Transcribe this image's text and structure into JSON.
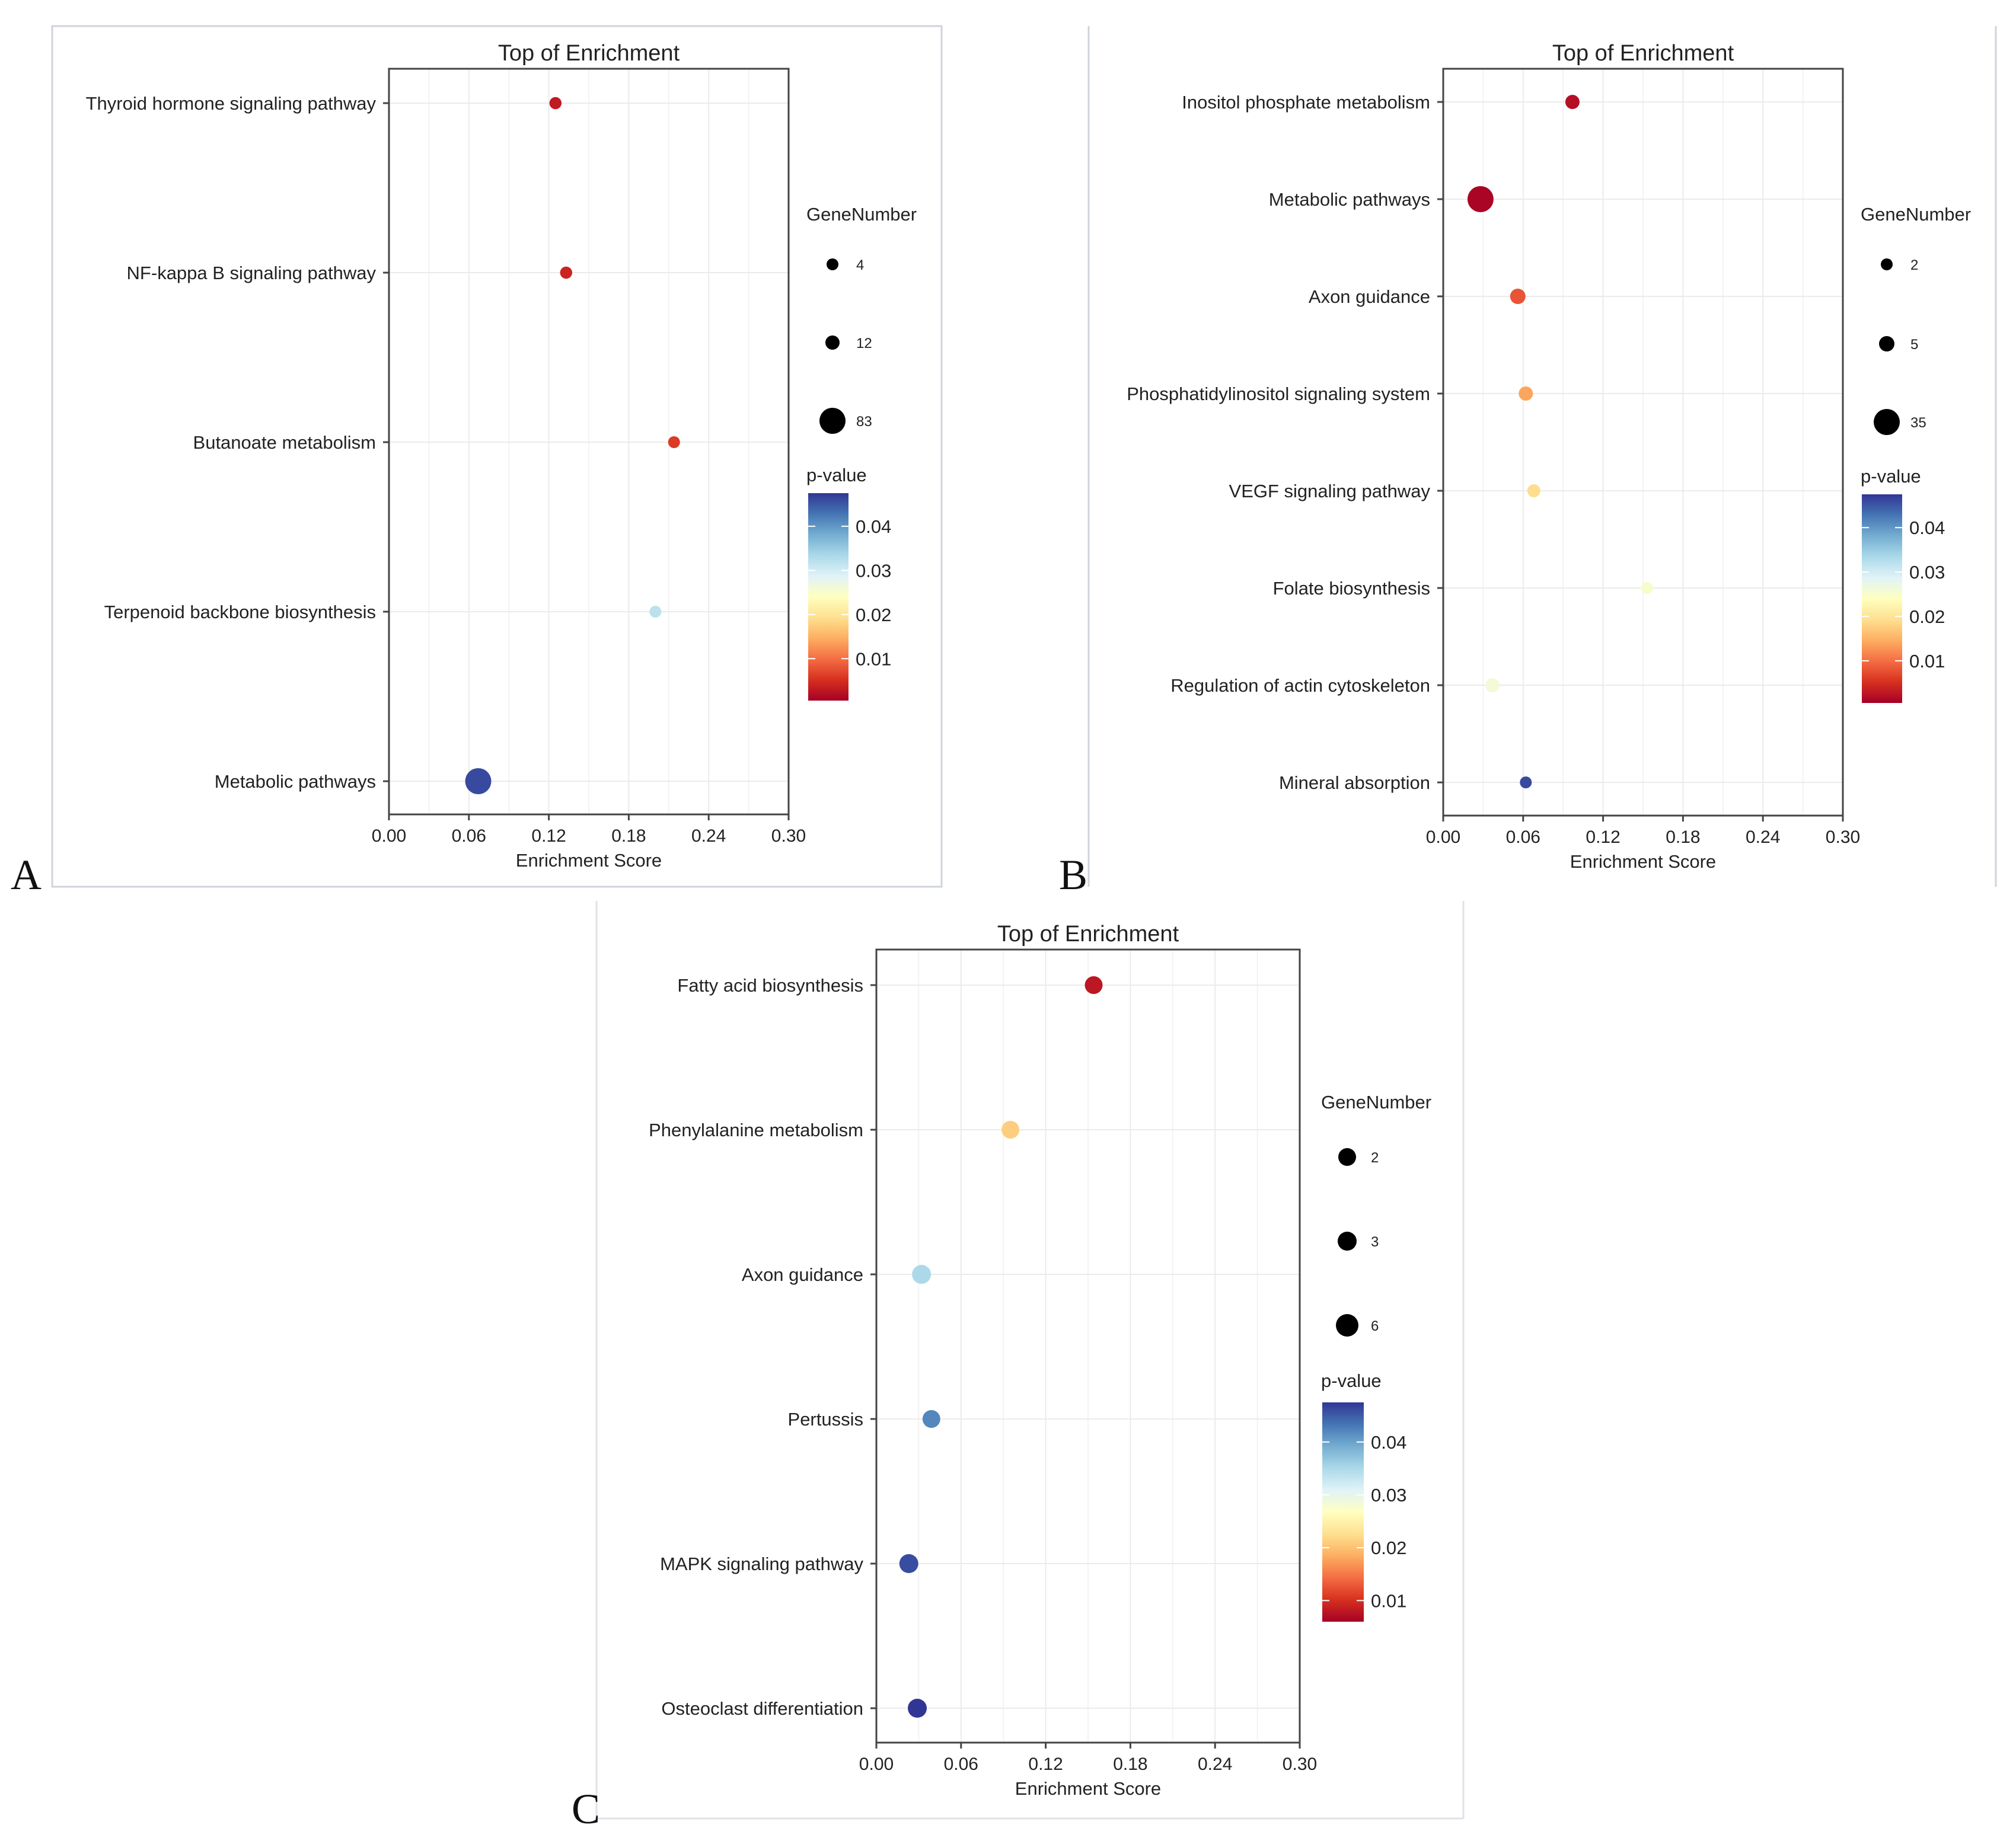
{
  "chart_data": [
    {
      "panel": "A",
      "type": "scatter",
      "title": "Top  of  Enrichment",
      "xlabel": "Enrichment Score",
      "ylabel": "",
      "xlim": [
        0,
        0.3
      ],
      "xticks": [
        "0.00",
        "0.06",
        "0.12",
        "0.18",
        "0.24",
        "0.30"
      ],
      "categories": [
        "Thyroid hormone signaling pathway",
        "NF-kappa B signaling pathway",
        "Butanoate metabolism",
        "Terpenoid backbone biosynthesis",
        "Metabolic pathways"
      ],
      "enrichment": [
        0.125,
        0.133,
        0.214,
        0.2,
        0.067
      ],
      "pvalue": [
        0.003,
        0.004,
        0.006,
        0.032,
        0.046
      ],
      "gene_number": [
        5,
        5,
        4,
        4,
        83
      ],
      "size_legend": {
        "title": "GeneNumber",
        "values": [
          4,
          12,
          83
        ]
      },
      "color_legend": {
        "title": "p-value",
        "ticks": [
          "0.04",
          "0.03",
          "0.02",
          "0.01"
        ],
        "tick_values": [
          0.04,
          0.03,
          0.02,
          0.01
        ],
        "range": [
          0.0005,
          0.0475
        ]
      }
    },
    {
      "panel": "B",
      "type": "scatter",
      "title": "Top  of  Enrichment",
      "xlabel": "Enrichment Score",
      "ylabel": "",
      "xlim": [
        0,
        0.3
      ],
      "xticks": [
        "0.00",
        "0.06",
        "0.12",
        "0.18",
        "0.24",
        "0.30"
      ],
      "categories": [
        "Inositol phosphate metabolism",
        "Metabolic pathways",
        "Axon guidance",
        "Phosphatidylinositol signaling system",
        "VEGF signaling pathway",
        "Folate biosynthesis",
        "Regulation of actin cytoskeleton",
        "Mineral absorption"
      ],
      "enrichment": [
        0.097,
        0.028,
        0.056,
        0.062,
        0.068,
        0.153,
        0.037,
        0.062
      ],
      "pvalue": [
        0.002,
        0.001,
        0.008,
        0.014,
        0.019,
        0.025,
        0.026,
        0.046
      ],
      "gene_number": [
        4,
        35,
        5,
        4,
        3,
        2,
        4,
        2
      ],
      "size_legend": {
        "title": "GeneNumber",
        "values": [
          2,
          5,
          35
        ]
      },
      "color_legend": {
        "title": "p-value",
        "ticks": [
          "0.04",
          "0.03",
          "0.02",
          "0.01"
        ],
        "tick_values": [
          0.04,
          0.03,
          0.02,
          0.01
        ],
        "range": [
          0.0005,
          0.0475
        ]
      }
    },
    {
      "panel": "C",
      "type": "scatter",
      "title": "Top  of  Enrichment",
      "xlabel": "Enrichment Score",
      "ylabel": "",
      "xlim": [
        0,
        0.3
      ],
      "xticks": [
        "0.00",
        "0.06",
        "0.12",
        "0.18",
        "0.24",
        "0.30"
      ],
      "categories": [
        "Fatty acid biosynthesis",
        "Phenylalanine metabolism",
        "Axon guidance",
        "Pertussis",
        "MAPK signaling pathway",
        "Osteoclast differentiation"
      ],
      "enrichment": [
        0.154,
        0.095,
        0.032,
        0.039,
        0.023,
        0.029
      ],
      "pvalue": [
        0.008,
        0.021,
        0.035,
        0.042,
        0.046,
        0.048
      ],
      "gene_number": [
        2,
        2,
        3,
        2,
        3,
        3
      ],
      "size_legend": {
        "title": "GeneNumber",
        "values": [
          2,
          3,
          6
        ]
      },
      "color_legend": {
        "title": "p-value",
        "ticks": [
          "0.04",
          "0.03",
          "0.02",
          "0.01"
        ],
        "tick_values": [
          0.04,
          0.03,
          0.02,
          0.01
        ],
        "range": [
          0.006,
          0.0475
        ]
      }
    }
  ],
  "colors": {
    "scale": [
      "#a50026",
      "#d7301f",
      "#f46d43",
      "#fdae61",
      "#fee090",
      "#ffffbf",
      "#e0f3f8",
      "#abd9e9",
      "#74add1",
      "#4575b4",
      "#313695"
    ],
    "grid": "#ebebeb",
    "frame": "#444444"
  }
}
